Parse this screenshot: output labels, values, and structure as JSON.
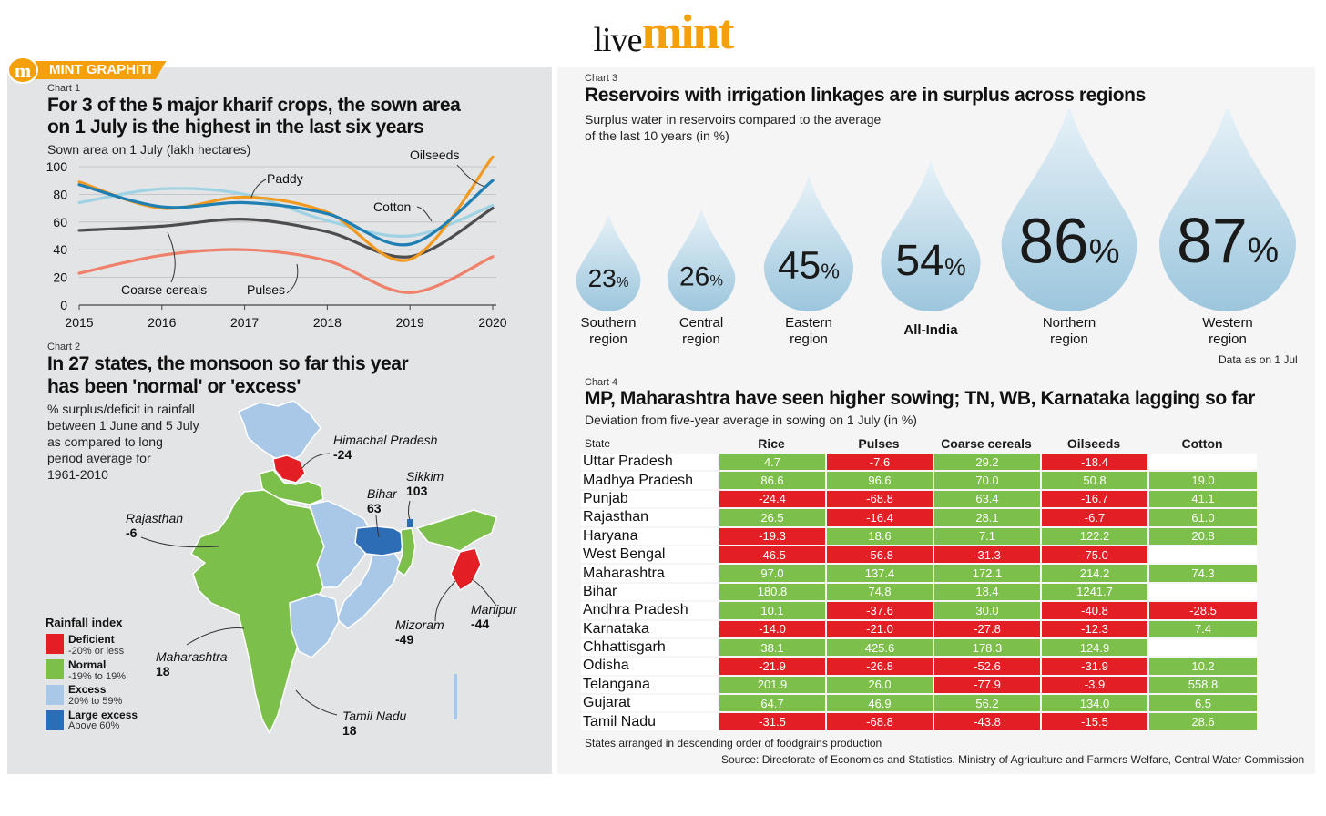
{
  "brand": {
    "live": "live",
    "mint": "mint"
  },
  "badge": {
    "icon": "m",
    "label": "MINT GRAPHITI"
  },
  "colors": {
    "accent": "#f5a00a",
    "deficient": "#e31e24",
    "normal": "#7cc04b",
    "excess": "#a9c8e8",
    "large_excess": "#2d6db5"
  },
  "chart1": {
    "tag": "Chart 1",
    "title_line1": "For 3 of the 5 major kharif crops, the sown area",
    "title_line2": "on 1 July is the highest in the last six years",
    "subtitle": "Sown area on 1 July (lakh hectares)"
  },
  "chart2": {
    "tag": "Chart 2",
    "title_line1": "In 27 states, the monsoon so far this year",
    "title_line2": "has been 'normal' or 'excess'",
    "desc_lines": [
      "% surplus/deficit in rainfall",
      "between 1 June and 5 July",
      "as compared to long",
      "period average for",
      "1961-2010"
    ],
    "legend_title": "Rainfall index",
    "legend": [
      {
        "name": "Deficient",
        "range": "-20% or less",
        "color": "#e31e24"
      },
      {
        "name": "Normal",
        "range": "-19% to 19%",
        "color": "#7cc04b"
      },
      {
        "name": "Excess",
        "range": "20% to 59%",
        "color": "#a9c8e8"
      },
      {
        "name": "Large excess",
        "range": "Above 60%",
        "color": "#2d6db5"
      }
    ],
    "states": [
      {
        "name": "Himachal Pradesh",
        "value": "-24"
      },
      {
        "name": "Sikkim",
        "value": "103"
      },
      {
        "name": "Bihar",
        "value": "63"
      },
      {
        "name": "Rajasthan",
        "value": "-6"
      },
      {
        "name": "Manipur",
        "value": "-44"
      },
      {
        "name": "Mizoram",
        "value": "-49"
      },
      {
        "name": "Maharashtra",
        "value": "18"
      },
      {
        "name": "Tamil Nadu",
        "value": "18"
      }
    ]
  },
  "chart3": {
    "tag": "Chart 3",
    "title": "Reservoirs with irrigation linkages are in surplus across regions",
    "subtitle_line1": "Surplus water in reservoirs compared to the average",
    "subtitle_line2": "of the last 10 years (in %)",
    "note": "Data as on 1 Jul",
    "drops": [
      {
        "label_line1": "Southern",
        "label_line2": "region",
        "value": 23
      },
      {
        "label_line1": "Central",
        "label_line2": "region",
        "value": 26
      },
      {
        "label_line1": "Eastern",
        "label_line2": "region",
        "value": 45
      },
      {
        "label_line1": "All-India",
        "label_line2": "",
        "value": 54
      },
      {
        "label_line1": "Northern",
        "label_line2": "region",
        "value": 86
      },
      {
        "label_line1": "Western",
        "label_line2": "region",
        "value": 87
      }
    ]
  },
  "chart4": {
    "tag": "Chart 4",
    "title": "MP, Maharashtra have seen higher sowing; TN, WB, Karnataka lagging so far",
    "subtitle": "Deviation from five-year average in sowing on 1 July (in %)",
    "columns": [
      "State",
      "Rice",
      "Pulses",
      "Coarse cereals",
      "Oilseeds",
      "Cotton"
    ],
    "rows": [
      [
        "Uttar Pradesh",
        "4.7",
        "-7.6",
        "29.2",
        "-18.4",
        ""
      ],
      [
        "Madhya Pradesh",
        "86.6",
        "96.6",
        "70.0",
        "50.8",
        "19.0"
      ],
      [
        "Punjab",
        "-24.4",
        "-68.8",
        "63.4",
        "-16.7",
        "41.1"
      ],
      [
        "Rajasthan",
        "26.5",
        "-16.4",
        "28.1",
        "-6.7",
        "61.0"
      ],
      [
        "Haryana",
        "-19.3",
        "18.6",
        "7.1",
        "122.2",
        "20.8"
      ],
      [
        "West Bengal",
        "-46.5",
        "-56.8",
        "-31.3",
        "-75.0",
        ""
      ],
      [
        "Maharashtra",
        "97.0",
        "137.4",
        "172.1",
        "214.2",
        "74.3"
      ],
      [
        "Bihar",
        "180.8",
        "74.8",
        "18.4",
        "1241.7",
        ""
      ],
      [
        "Andhra Pradesh",
        "10.1",
        "-37.6",
        "30.0",
        "-40.8",
        "-28.5"
      ],
      [
        "Karnataka",
        "-14.0",
        "-21.0",
        "-27.8",
        "-12.3",
        "7.4"
      ],
      [
        "Chhattisgarh",
        "38.1",
        "425.6",
        "178.3",
        "124.9",
        ""
      ],
      [
        "Odisha",
        "-21.9",
        "-26.8",
        "-52.6",
        "-31.9",
        "10.2"
      ],
      [
        "Telangana",
        "201.9",
        "26.0",
        "-77.9",
        "-3.9",
        "558.8"
      ],
      [
        "Gujarat",
        "64.7",
        "46.9",
        "56.2",
        "134.0",
        "6.5"
      ],
      [
        "Tamil Nadu",
        "-31.5",
        "-68.8",
        "-43.8",
        "-15.5",
        "28.6"
      ]
    ],
    "footnote": "States arranged in descending order of foodgrains production"
  },
  "source": "Source: Directorate of Economics and Statistics, Ministry of Agriculture and Farmers Welfare, Central Water Commission",
  "chart_data": [
    {
      "type": "line",
      "title": "For 3 of the 5 major kharif crops, the sown area on 1 July is the highest in the last six years",
      "ylabel": "Sown area on 1 July (lakh hectares)",
      "x": [
        2015,
        2016,
        2017,
        2018,
        2019,
        2020
      ],
      "x_labels": [
        "2015",
        "2016",
        "2017",
        "2018",
        "2019",
        "2020"
      ],
      "ylim": [
        0,
        100
      ],
      "yticks": [
        0,
        20,
        40,
        60,
        80,
        100
      ],
      "series": [
        {
          "name": "Oilseeds",
          "color": "#f29a1f",
          "values": [
            89,
            70,
            78,
            67,
            33,
            107
          ]
        },
        {
          "name": "Paddy",
          "color": "#9fd3e3",
          "values": [
            74,
            84,
            80,
            61,
            50,
            72
          ]
        },
        {
          "name": "Cotton",
          "color": "#1f7fb3",
          "values": [
            87,
            71,
            74,
            66,
            44,
            90
          ]
        },
        {
          "name": "Coarse cereals",
          "color": "#4d4d4d",
          "values": [
            54,
            57,
            62,
            53,
            35,
            70
          ]
        },
        {
          "name": "Pulses",
          "color": "#ef8069",
          "values": [
            23,
            36,
            40,
            32,
            9,
            35
          ]
        }
      ],
      "annotations": [
        "Oilseeds",
        "Paddy",
        "Cotton",
        "Coarse cereals",
        "Pulses"
      ]
    },
    {
      "type": "bar",
      "title": "Reservoirs with irrigation linkages are in surplus across regions",
      "categories": [
        "Southern region",
        "Central region",
        "Eastern region",
        "All-India",
        "Northern region",
        "Western region"
      ],
      "values": [
        23,
        26,
        45,
        54,
        86,
        87
      ],
      "unit": "%"
    },
    {
      "type": "table",
      "title": "MP, Maharashtra have seen higher sowing; TN, WB, Karnataka lagging so far",
      "columns": [
        "State",
        "Rice",
        "Pulses",
        "Coarse cereals",
        "Oilseeds",
        "Cotton"
      ]
    }
  ]
}
